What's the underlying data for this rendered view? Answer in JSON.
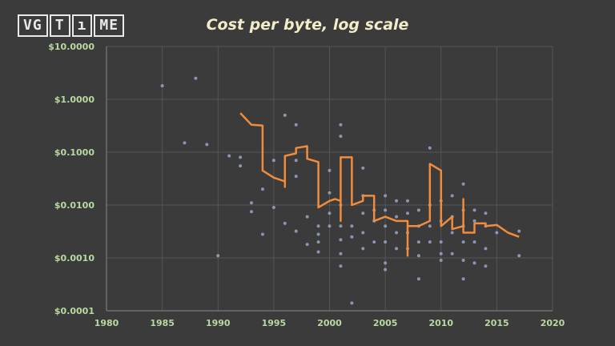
{
  "logo": {
    "letters": [
      "V",
      "G",
      "T",
      "ı",
      "M",
      "E"
    ]
  },
  "chart_data": {
    "type": "line",
    "title": "Cost per byte, log scale",
    "xlabel": "",
    "ylabel": "",
    "xlim": [
      1980,
      2020
    ],
    "ylim": [
      0.0001,
      10
    ],
    "y_scale": "log",
    "grid": true,
    "x_ticks": [
      1980,
      1985,
      1990,
      1995,
      2000,
      2005,
      2010,
      2015,
      2020
    ],
    "y_ticks": [
      {
        "value": 10,
        "label": "$10.0000"
      },
      {
        "value": 1,
        "label": "$1.0000"
      },
      {
        "value": 0.1,
        "label": "$0.1000"
      },
      {
        "value": 0.01,
        "label": "$0.0100"
      },
      {
        "value": 0.001,
        "label": "$0.0010"
      },
      {
        "value": 0.0001,
        "label": "$0.0001"
      }
    ],
    "colors": {
      "line": "#f08c3c",
      "points": "#9aa6c8",
      "grid": "#555555",
      "axis": "#888888"
    },
    "trend_line": [
      [
        1992,
        0.55
      ],
      [
        1993,
        0.33
      ],
      [
        1994,
        0.32
      ],
      [
        1994,
        0.045
      ],
      [
        1995,
        0.033
      ],
      [
        1996,
        0.028
      ],
      [
        1996,
        0.022
      ],
      [
        1996,
        0.085
      ],
      [
        1997,
        0.095
      ],
      [
        1997,
        0.12
      ],
      [
        1998,
        0.13
      ],
      [
        1998,
        0.075
      ],
      [
        1999,
        0.065
      ],
      [
        1999,
        0.009
      ],
      [
        2000,
        0.012
      ],
      [
        2000.5,
        0.013
      ],
      [
        2001,
        0.012
      ],
      [
        2001,
        0.005
      ],
      [
        2001,
        0.08
      ],
      [
        2002,
        0.08
      ],
      [
        2002,
        0.01
      ],
      [
        2003,
        0.012
      ],
      [
        2003,
        0.015
      ],
      [
        2004,
        0.015
      ],
      [
        2004,
        0.005
      ],
      [
        2005,
        0.006
      ],
      [
        2006,
        0.005
      ],
      [
        2007,
        0.005
      ],
      [
        2007,
        0.0011
      ],
      [
        2007,
        0.004
      ],
      [
        2008,
        0.004
      ],
      [
        2009,
        0.005
      ],
      [
        2009,
        0.06
      ],
      [
        2010,
        0.045
      ],
      [
        2010,
        0.004
      ],
      [
        2011,
        0.006
      ],
      [
        2011,
        0.0035
      ],
      [
        2012,
        0.004
      ],
      [
        2012,
        0.013
      ],
      [
        2012,
        0.003
      ],
      [
        2013,
        0.003
      ],
      [
        2013,
        0.0045
      ],
      [
        2014,
        0.0045
      ],
      [
        2014,
        0.004
      ],
      [
        2015,
        0.0042
      ],
      [
        2016,
        0.003
      ],
      [
        2017,
        0.0025
      ]
    ],
    "points": [
      [
        1985,
        1.8
      ],
      [
        1988,
        2.5
      ],
      [
        1987,
        0.15
      ],
      [
        1989,
        0.14
      ],
      [
        1990,
        0.0011
      ],
      [
        1991,
        0.085
      ],
      [
        1992,
        0.08
      ],
      [
        1992,
        0.055
      ],
      [
        1993,
        0.011
      ],
      [
        1993,
        0.0075
      ],
      [
        1994,
        0.02
      ],
      [
        1994,
        0.0028
      ],
      [
        1995,
        0.009
      ],
      [
        1995,
        0.07
      ],
      [
        1996,
        0.5
      ],
      [
        1996,
        0.0045
      ],
      [
        1997,
        0.33
      ],
      [
        1997,
        0.035
      ],
      [
        1997,
        0.07
      ],
      [
        1997,
        0.0032
      ],
      [
        1998,
        0.006
      ],
      [
        1998,
        0.0018
      ],
      [
        1999,
        0.004
      ],
      [
        1999,
        0.0028
      ],
      [
        1999,
        0.0013
      ],
      [
        1999,
        0.002
      ],
      [
        2000,
        0.045
      ],
      [
        2000,
        0.017
      ],
      [
        2000,
        0.007
      ],
      [
        2000,
        0.004
      ],
      [
        2001,
        0.33
      ],
      [
        2001,
        0.2
      ],
      [
        2001,
        0.01
      ],
      [
        2001,
        0.004
      ],
      [
        2001,
        0.0022
      ],
      [
        2001,
        0.0012
      ],
      [
        2001,
        0.0007
      ],
      [
        2002,
        0.004
      ],
      [
        2002,
        0.0025
      ],
      [
        2002,
        0.00014
      ],
      [
        2003,
        0.05
      ],
      [
        2003,
        0.015
      ],
      [
        2003,
        0.007
      ],
      [
        2003,
        0.003
      ],
      [
        2003,
        0.0015
      ],
      [
        2004,
        0.008
      ],
      [
        2004,
        0.005
      ],
      [
        2004,
        0.002
      ],
      [
        2005,
        0.015
      ],
      [
        2005,
        0.008
      ],
      [
        2005,
        0.004
      ],
      [
        2005,
        0.002
      ],
      [
        2005,
        0.0008
      ],
      [
        2005,
        0.0006
      ],
      [
        2006,
        0.012
      ],
      [
        2006,
        0.006
      ],
      [
        2006,
        0.003
      ],
      [
        2006,
        0.0015
      ],
      [
        2007,
        0.012
      ],
      [
        2007,
        0.007
      ],
      [
        2007,
        0.003
      ],
      [
        2007,
        0.0015
      ],
      [
        2008,
        0.008
      ],
      [
        2008,
        0.004
      ],
      [
        2008,
        0.002
      ],
      [
        2008,
        0.0011
      ],
      [
        2008,
        0.0004
      ],
      [
        2009,
        0.12
      ],
      [
        2009,
        0.01
      ],
      [
        2009,
        0.004
      ],
      [
        2009,
        0.002
      ],
      [
        2010,
        0.012
      ],
      [
        2010,
        0.005
      ],
      [
        2010,
        0.002
      ],
      [
        2010,
        0.0012
      ],
      [
        2010,
        0.0009
      ],
      [
        2011,
        0.015
      ],
      [
        2011,
        0.006
      ],
      [
        2011,
        0.003
      ],
      [
        2011,
        0.0012
      ],
      [
        2012,
        0.025
      ],
      [
        2012,
        0.008
      ],
      [
        2012,
        0.004
      ],
      [
        2012,
        0.002
      ],
      [
        2012,
        0.0009
      ],
      [
        2012,
        0.0004
      ],
      [
        2013,
        0.008
      ],
      [
        2013,
        0.005
      ],
      [
        2013,
        0.002
      ],
      [
        2013,
        0.0008
      ],
      [
        2014,
        0.007
      ],
      [
        2014,
        0.004
      ],
      [
        2014,
        0.0015
      ],
      [
        2014,
        0.0007
      ],
      [
        2015,
        0.003
      ],
      [
        2017,
        0.0032
      ],
      [
        2017,
        0.0011
      ]
    ]
  }
}
